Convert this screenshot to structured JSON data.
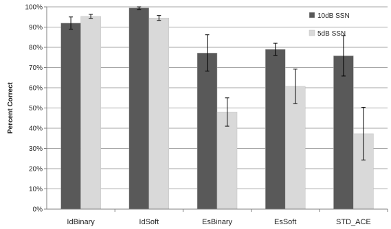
{
  "chart_data": {
    "type": "bar",
    "title": "",
    "xlabel": "",
    "ylabel": "Percent Correct",
    "ylim": [
      0,
      100
    ],
    "yticks": [
      "0%",
      "10%",
      "20%",
      "30%",
      "40%",
      "50%",
      "60%",
      "70%",
      "80%",
      "90%",
      "100%"
    ],
    "categories": [
      "IdBinary",
      "IdSoft",
      "EsBinary",
      "EsSoft",
      "STD_ACE"
    ],
    "legend_position": "top-right",
    "grid": true,
    "series": [
      {
        "name": "10dB SSN",
        "color": "#595959",
        "values": [
          92,
          99.5,
          77.2,
          79,
          75.8
        ],
        "error": [
          3,
          0.8,
          9,
          3,
          10
        ]
      },
      {
        "name": "5dB SSN",
        "color": "#d9d9d9",
        "values": [
          95.3,
          94.5,
          48,
          60.7,
          37.3
        ],
        "error": [
          1,
          1.2,
          7,
          8.5,
          13
        ]
      }
    ]
  }
}
